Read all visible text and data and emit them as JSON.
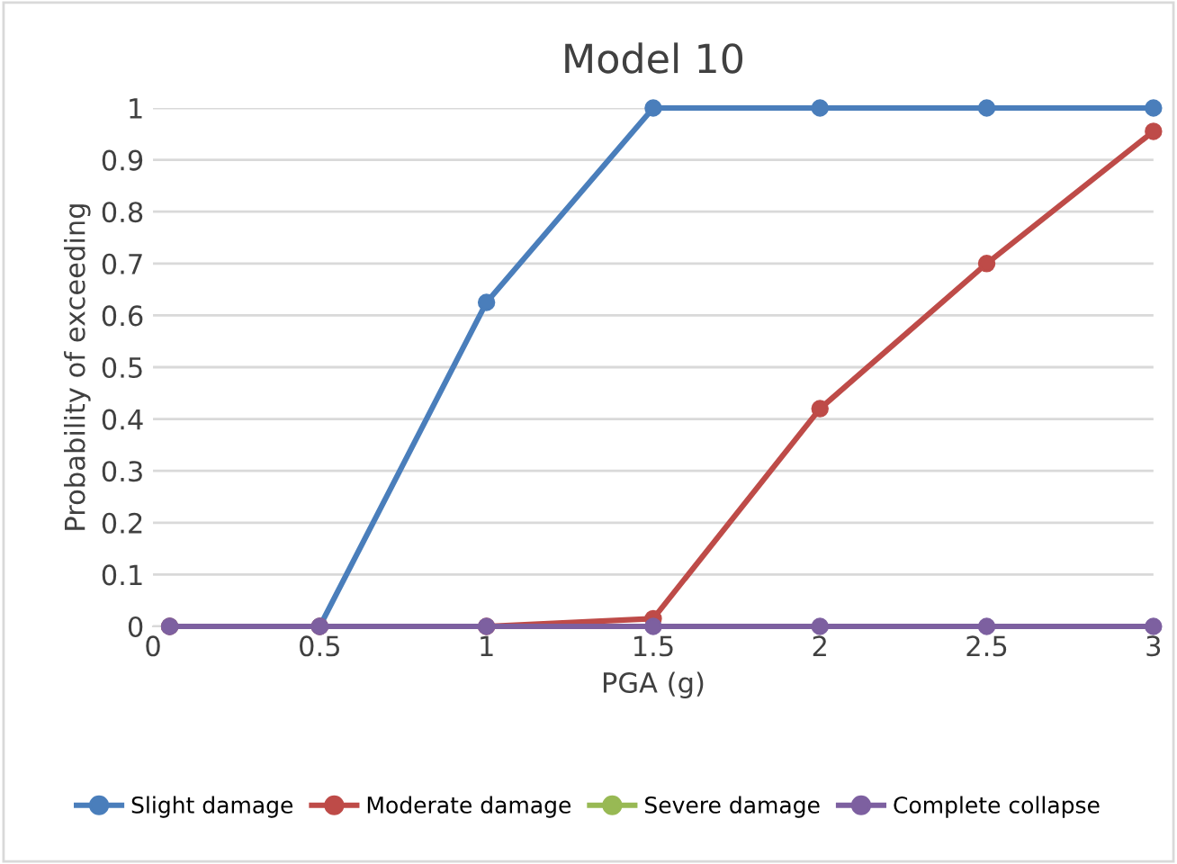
{
  "chart_data": {
    "type": "line",
    "title": "Model 10",
    "xlabel": "PGA (g)",
    "ylabel": "Probability of exceeding",
    "x": [
      0.05,
      0.5,
      1,
      1.5,
      2,
      2.5,
      3
    ],
    "series": [
      {
        "name": "Slight damage",
        "color": "#4a7ebb",
        "values": [
          0,
          0,
          0.625,
          1,
          1,
          1,
          1
        ]
      },
      {
        "name": "Moderate damage",
        "color": "#be4b48",
        "values": [
          0,
          0,
          0,
          0.015,
          0.42,
          0.7,
          0.955
        ]
      },
      {
        "name": "Severe damage",
        "color": "#98b954",
        "values": [
          null,
          null,
          null,
          null,
          null,
          null,
          null
        ]
      },
      {
        "name": "Complete collapse",
        "color": "#7d60a0",
        "values": [
          0,
          0,
          0,
          0,
          0,
          0,
          0
        ]
      }
    ],
    "xlim": [
      0,
      3
    ],
    "ylim": [
      0,
      1
    ],
    "xticks": [
      0,
      0.5,
      1,
      1.5,
      2,
      2.5,
      3
    ],
    "yticks": [
      0,
      0.1,
      0.2,
      0.3,
      0.4,
      0.5,
      0.6,
      0.7,
      0.8,
      0.9,
      1
    ],
    "grid": "y",
    "legend": "bottom",
    "marker": "circle",
    "line_style": "solid"
  }
}
